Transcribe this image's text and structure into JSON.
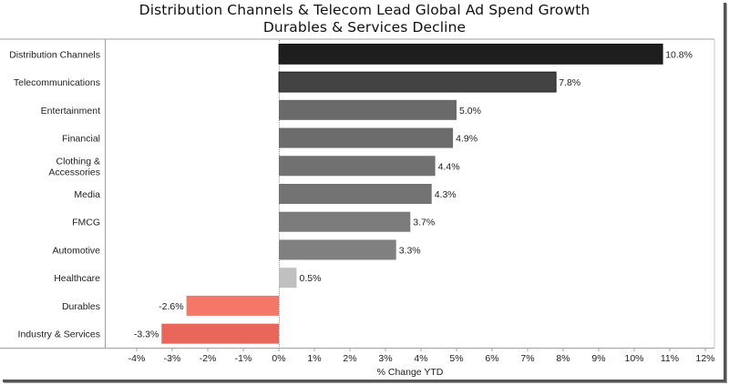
{
  "chart_data": {
    "type": "bar",
    "orientation": "horizontal",
    "title": "Distribution Channels & Telecom Lead Global Ad Spend Growth",
    "subtitle": "Durables & Services Decline",
    "xlabel": "% Change YTD",
    "ylabel": "",
    "xlim": [
      -4.4,
      12.3
    ],
    "x_ticks": [
      -4,
      -3,
      -2,
      -1,
      0,
      1,
      2,
      3,
      4,
      5,
      6,
      7,
      8,
      9,
      10,
      11,
      12
    ],
    "x_tick_labels": [
      "-4%",
      "-3%",
      "-2%",
      "-1%",
      "0%",
      "1%",
      "2%",
      "3%",
      "4%",
      "5%",
      "6%",
      "7%",
      "8%",
      "9%",
      "10%",
      "11%",
      "12%"
    ],
    "grid": false,
    "legend": "none",
    "categories": [
      [
        "Distribution Channels"
      ],
      [
        "Telecommunications"
      ],
      [
        "Entertainment"
      ],
      [
        "Financial"
      ],
      [
        "Clothing &",
        "Accessories"
      ],
      [
        "Media"
      ],
      [
        "FMCG"
      ],
      [
        "Automotive"
      ],
      [
        "Healthcare"
      ],
      [
        "Durables"
      ],
      [
        "Industry & Services"
      ]
    ],
    "values": [
      10.8,
      7.8,
      5.0,
      4.9,
      4.4,
      4.3,
      3.7,
      3.3,
      0.5,
      -2.6,
      -3.3
    ],
    "data_labels": [
      "10.8%",
      "7.8%",
      "5.0%",
      "4.9%",
      "4.4%",
      "4.3%",
      "3.7%",
      "3.3%",
      "0.5%",
      "-2.6%",
      "-3.3%"
    ],
    "colors": [
      "#1e1e1e",
      "#434343",
      "#6a6a6a",
      "#6c6c6c",
      "#717171",
      "#737373",
      "#7b7b7b",
      "#808080",
      "#c0c0c0",
      "#f4776a",
      "#e8665a"
    ]
  }
}
